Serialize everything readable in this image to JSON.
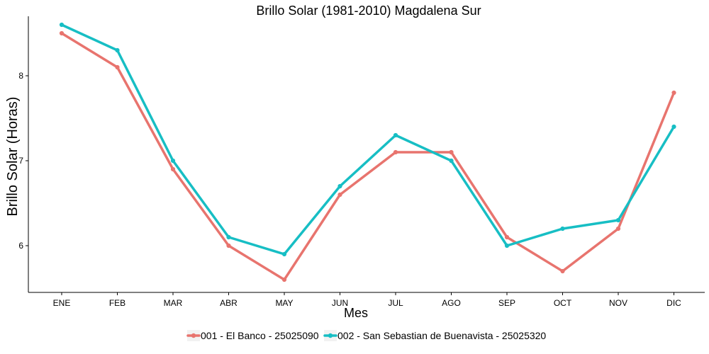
{
  "chart_data": {
    "type": "line",
    "title": "Brillo Solar (1981-2010)  Magdalena Sur",
    "xlabel": "Mes",
    "ylabel": "Brillo Solar (Horas)",
    "categories": [
      "ENE",
      "FEB",
      "MAR",
      "ABR",
      "MAY",
      "JUN",
      "JUL",
      "AGO",
      "SEP",
      "OCT",
      "NOV",
      "DIC"
    ],
    "y_ticks": [
      6,
      7,
      8
    ],
    "ylim": [
      5.45,
      8.7
    ],
    "grid": false,
    "legend_position": "bottom",
    "series": [
      {
        "name": "001 - El Banco - 25025090",
        "color": "#E8746E",
        "values": [
          8.5,
          8.1,
          6.9,
          6.0,
          5.6,
          6.6,
          7.1,
          7.1,
          6.1,
          5.7,
          6.2,
          7.8
        ]
      },
      {
        "name": "002 - San Sebastian de Buenavista - 25025320",
        "color": "#17BEC4",
        "values": [
          8.6,
          8.3,
          7.0,
          6.1,
          5.9,
          6.7,
          7.3,
          7.0,
          6.0,
          6.2,
          6.3,
          7.4
        ]
      }
    ]
  }
}
